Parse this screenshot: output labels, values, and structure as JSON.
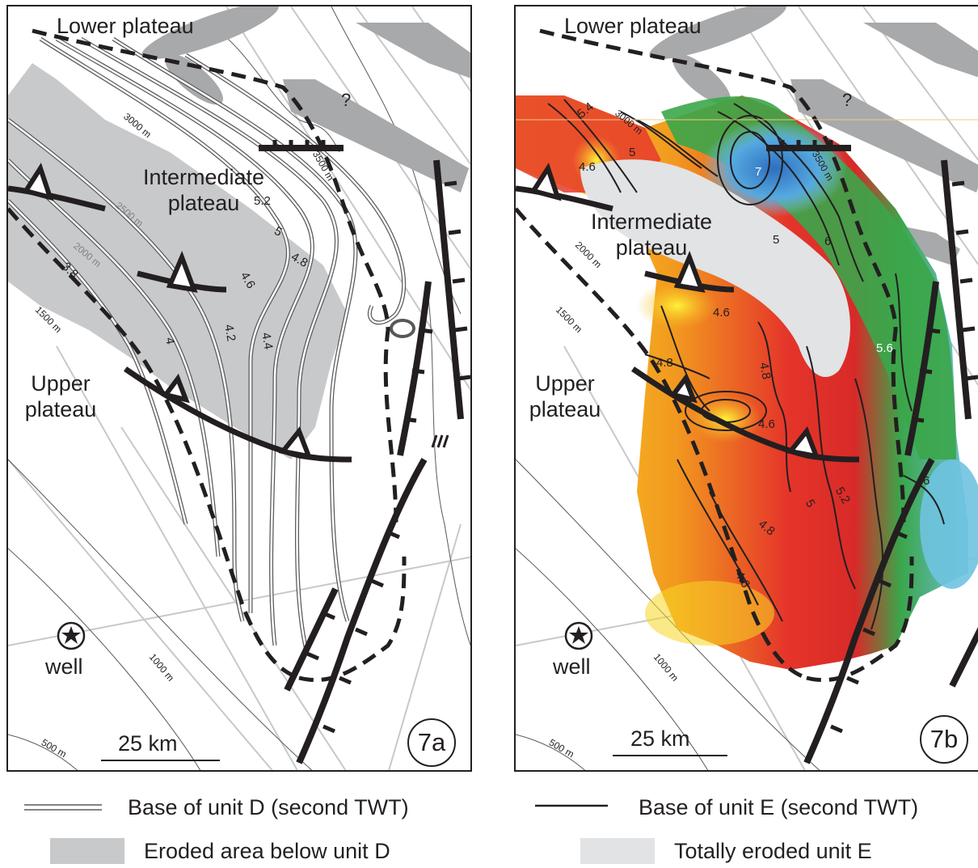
{
  "panel_a": {
    "label_lower": "Lower plateau",
    "label_intermediate": "Intermediate plateau",
    "label_upper": "Upper plateau",
    "label_well": "well",
    "label_question": "?",
    "scale": "25 km",
    "figure_id": "7a",
    "bathy": [
      "3000 m",
      "3500 m",
      "2500 m",
      "2000 m",
      "1500 m",
      "1000 m",
      "500 m"
    ],
    "contours": [
      "5.2",
      "5",
      "4.8",
      "4.6",
      "4.4",
      "4.2",
      "4",
      "3.8"
    ]
  },
  "panel_b": {
    "label_lower": "Lower plateau",
    "label_intermediate": "Intermediate plateau",
    "label_upper": "Upper plateau",
    "label_well": "well",
    "label_question": "?",
    "scale": "25 km",
    "figure_id": "7b",
    "bathy": [
      "3000 m",
      "3500 m",
      "2000 m",
      "1500 m",
      "1000 m",
      "500 m"
    ],
    "contours": [
      "5.4",
      "4.6",
      "5",
      "7",
      "5",
      "6",
      "4.6",
      "4.8",
      "4.8",
      "4.6",
      "5.6",
      "5",
      "5.2",
      "4.8",
      "4.6",
      "6"
    ]
  },
  "legend": {
    "unit_d_base": "Base of unit D (second TWT)",
    "unit_d_eroded": "Eroded area below unit D",
    "unit_e_base": "Base of unit E (second TWT)",
    "unit_e_eroded": "Totally eroded unit E"
  },
  "colors": {
    "eroded_d": "#c8c9cb",
    "eroded_e": "#e1e3e5",
    "gray_blob": "#a7a9ab",
    "outline": "#231f20"
  }
}
